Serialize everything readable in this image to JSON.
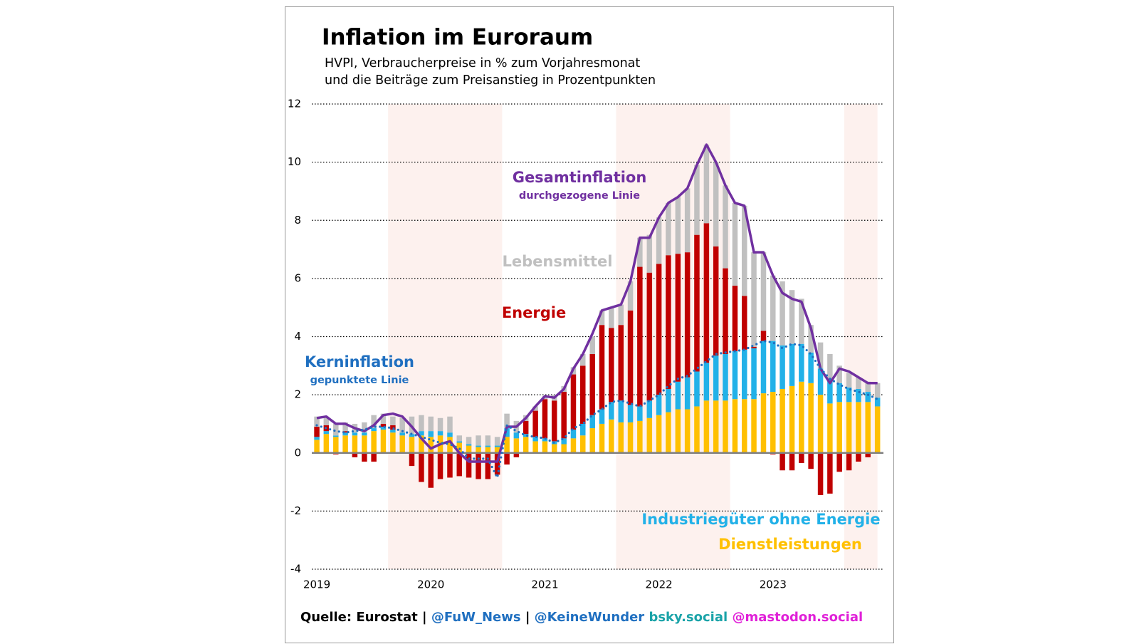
{
  "chart_data": {
    "type": "stacked-bar-line",
    "title": "Inflation im Euroraum",
    "subtitle": [
      "HVPI, Verbraucherpreise in % zum Vorjahresmonat",
      "und die Beiträge zum Preisanstieg in Prozentpunkten"
    ],
    "x": [
      2019,
      2019.083,
      2019.167,
      2019.25,
      2019.333,
      2019.417,
      2019.5,
      2019.583,
      2019.667,
      2019.75,
      2019.833,
      2019.917,
      2020,
      2020.083,
      2020.167,
      2020.25,
      2020.333,
      2020.417,
      2020.5,
      2020.583,
      2020.667,
      2020.75,
      2020.833,
      2020.917,
      2021,
      2021.083,
      2021.167,
      2021.25,
      2021.333,
      2021.417,
      2021.5,
      2021.583,
      2021.667,
      2021.75,
      2021.833,
      2021.917,
      2022,
      2022.083,
      2022.167,
      2022.25,
      2022.333,
      2022.417,
      2022.5,
      2022.583,
      2022.667,
      2022.75,
      2022.833,
      2022.917,
      2023,
      2023.083,
      2023.167,
      2023.25,
      2023.333,
      2023.417,
      2023.5,
      2023.583,
      2023.667,
      2023.75,
      2023.833,
      2023.917
    ],
    "xlim": [
      2018.956,
      2023.969
    ],
    "xticks": [
      2019,
      2020,
      2021,
      2022,
      2023
    ],
    "ylim": [
      -4,
      12
    ],
    "yticks": [
      -4,
      -2,
      0,
      2,
      4,
      6,
      8,
      10,
      12
    ],
    "grid": true,
    "highlight_color": "#fdf1ee",
    "highlight_ranges": [
      [
        2019.625,
        2020.625
      ],
      [
        2021.625,
        2022.625
      ],
      [
        2023.625,
        2023.917
      ]
    ],
    "series": [
      {
        "name": "Dienstleistungen",
        "kind": "bar",
        "color": "#ffc000",
        "values": [
          0.45,
          0.65,
          0.55,
          0.6,
          0.6,
          0.6,
          0.75,
          0.8,
          0.7,
          0.6,
          0.55,
          0.6,
          0.55,
          0.6,
          0.55,
          0.35,
          0.25,
          0.2,
          0.2,
          0.2,
          0.55,
          0.5,
          0.55,
          0.4,
          0.4,
          0.3,
          0.3,
          0.5,
          0.6,
          0.85,
          1.0,
          1.15,
          1.05,
          1.05,
          1.1,
          1.2,
          1.3,
          1.4,
          1.5,
          1.5,
          1.6,
          1.8,
          1.8,
          1.8,
          1.85,
          1.85,
          1.85,
          2.05,
          2.1,
          2.2,
          2.3,
          2.45,
          2.4,
          2.0,
          1.7,
          1.75,
          1.75,
          1.75,
          1.75,
          1.6
        ]
      },
      {
        "name": "Industriegüter ohne Energie",
        "kind": "bar",
        "color": "#22b1e8",
        "values": [
          0.1,
          0.1,
          0.05,
          0.1,
          0.1,
          0.1,
          0.1,
          0.1,
          0.1,
          0.1,
          0.1,
          0.15,
          0.2,
          0.15,
          0.15,
          0.05,
          0.05,
          0.05,
          0.05,
          0.05,
          0.3,
          0.2,
          0.1,
          0.15,
          0.1,
          0.1,
          0.2,
          0.3,
          0.4,
          0.45,
          0.5,
          0.6,
          0.75,
          0.6,
          0.5,
          0.6,
          0.7,
          0.8,
          0.95,
          1.1,
          1.2,
          1.3,
          1.55,
          1.6,
          1.65,
          1.7,
          1.75,
          1.8,
          1.75,
          1.5,
          1.45,
          1.3,
          1.05,
          0.9,
          0.85,
          0.65,
          0.5,
          0.45,
          0.35,
          0.3
        ]
      },
      {
        "name": "Energie",
        "kind": "bar",
        "color": "#c00000",
        "values": [
          0.35,
          0.2,
          -0.05,
          0.05,
          -0.15,
          -0.3,
          -0.3,
          0.1,
          0.15,
          0,
          -0.45,
          -1.0,
          -1.2,
          -0.9,
          -0.85,
          -0.8,
          -0.85,
          -0.9,
          -0.9,
          -0.75,
          -0.4,
          -0.15,
          0.45,
          0.9,
          1.35,
          1.4,
          1.6,
          1.9,
          2.0,
          2.1,
          2.9,
          2.55,
          2.6,
          3.25,
          4.8,
          4.4,
          4.5,
          4.6,
          4.4,
          4.3,
          4.7,
          4.8,
          3.75,
          2.95,
          2.25,
          1.85,
          0.05,
          0.35,
          -0.05,
          -0.6,
          -0.6,
          -0.35,
          -0.55,
          -1.45,
          -1.4,
          -0.65,
          -0.6,
          -0.3,
          -0.15,
          0
        ]
      },
      {
        "name": "Lebensmittel",
        "kind": "bar",
        "color": "#c0c0c0",
        "values": [
          0.35,
          0.3,
          0.4,
          0.3,
          0.3,
          0.35,
          0.45,
          0.35,
          0.3,
          0.5,
          0.6,
          0.55,
          0.5,
          0.45,
          0.55,
          0.2,
          0.25,
          0.35,
          0.35,
          0.3,
          0.5,
          0.4,
          0.2,
          0.15,
          0.1,
          0.2,
          0.2,
          0.25,
          0.4,
          0.6,
          0.5,
          0.7,
          0.7,
          1.0,
          1.0,
          1.3,
          1.6,
          1.8,
          1.95,
          2.2,
          2.4,
          2.7,
          2.9,
          2.85,
          2.85,
          3.1,
          3.25,
          2.7,
          2.25,
          2.2,
          1.85,
          1.55,
          0.95,
          0.9,
          0.85,
          0.6,
          0.5,
          0.4,
          0.35,
          0.5
        ]
      },
      {
        "name": "Gesamtinflation",
        "note": "durchgezogene Linie",
        "kind": "line",
        "style": "solid",
        "color": "#7030a0",
        "values": [
          1.2,
          1.25,
          1.0,
          1.0,
          0.85,
          0.75,
          0.95,
          1.3,
          1.35,
          1.25,
          0.9,
          0.5,
          0.15,
          0.3,
          0.4,
          0.0,
          -0.3,
          -0.3,
          -0.3,
          -0.3,
          0.9,
          0.9,
          1.2,
          1.6,
          1.95,
          1.9,
          2.2,
          2.9,
          3.4,
          4.1,
          4.9,
          5.0,
          5.1,
          5.9,
          7.4,
          7.4,
          8.1,
          8.6,
          8.8,
          9.1,
          9.9,
          10.6,
          10.0,
          9.2,
          8.6,
          8.5,
          6.9,
          6.9,
          6.1,
          5.5,
          5.3,
          5.2,
          4.3,
          2.9,
          2.4,
          2.9,
          2.8,
          2.6,
          2.4,
          2.4
        ]
      },
      {
        "name": "Kerninflation",
        "note": "gepunktete Linie",
        "kind": "line",
        "style": "dotted",
        "color": "#1f6fc0",
        "values": [
          0.95,
          0.85,
          0.75,
          0.7,
          0.75,
          0.8,
          0.9,
          0.9,
          0.85,
          0.75,
          0.65,
          0.55,
          0.45,
          0.35,
          0.3,
          0.15,
          -0.2,
          -0.2,
          -0.2,
          -0.85,
          0.95,
          0.75,
          0.6,
          0.55,
          0.5,
          0.35,
          0.5,
          0.85,
          1.0,
          1.3,
          1.5,
          1.75,
          1.8,
          1.7,
          1.6,
          1.8,
          2.0,
          2.3,
          2.55,
          2.65,
          2.9,
          3.15,
          3.4,
          3.45,
          3.5,
          3.55,
          3.7,
          3.85,
          3.8,
          3.6,
          3.75,
          3.7,
          3.4,
          2.9,
          2.55,
          2.35,
          2.2,
          2.1,
          2.0,
          1.85
        ]
      }
    ],
    "footer": [
      {
        "text": "Quelle: Eurostat | ",
        "color": "#000000"
      },
      {
        "text": "@FuW_News",
        "color": "#1f6fc0"
      },
      {
        "text": " | ",
        "color": "#000000"
      },
      {
        "text": "@KeineWunder",
        "color": "#1f6fc0"
      },
      {
        "text": " bsky.social",
        "color": "#1aa3a8"
      },
      {
        "text": " @mastodon.social",
        "color": "#e020d8"
      }
    ]
  }
}
